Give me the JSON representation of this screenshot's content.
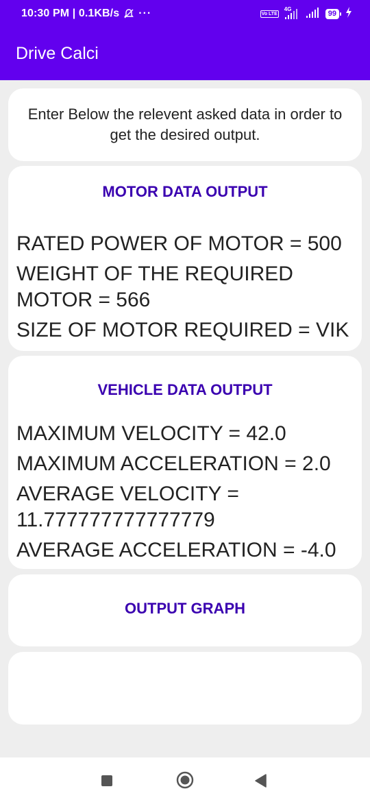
{
  "status_bar": {
    "time_speed": "10:30 PM | 0.1KB/s",
    "more_dots": "···",
    "volte_label": "Vo LTE",
    "network_label": "4G",
    "battery_level": "99"
  },
  "app": {
    "title": "Drive Calci"
  },
  "intro": {
    "text": "Enter Below the relevent asked data in order to get the desired output."
  },
  "motor": {
    "title": "MOTOR DATA OUTPUT",
    "rated_power": "RATED POWER OF MOTOR = 500",
    "weight": "WEIGHT OF THE REQUIRED MOTOR = 566",
    "size": "SIZE OF MOTOR REQUIRED =  VIK"
  },
  "vehicle": {
    "title": "VEHICLE DATA OUTPUT",
    "max_velocity": "MAXIMUM VELOCITY = 42.0",
    "max_acceleration": "MAXIMUM ACCELERATION = 2.0",
    "avg_velocity": "AVERAGE VELOCITY = 11.777777777777779",
    "avg_acceleration": "AVERAGE ACCELERATION = -4.0"
  },
  "graph": {
    "title": "OUTPUT GRAPH"
  },
  "colors": {
    "primary": "#6200ee",
    "section_title": "#3a00b0",
    "background": "#eeeeee"
  }
}
